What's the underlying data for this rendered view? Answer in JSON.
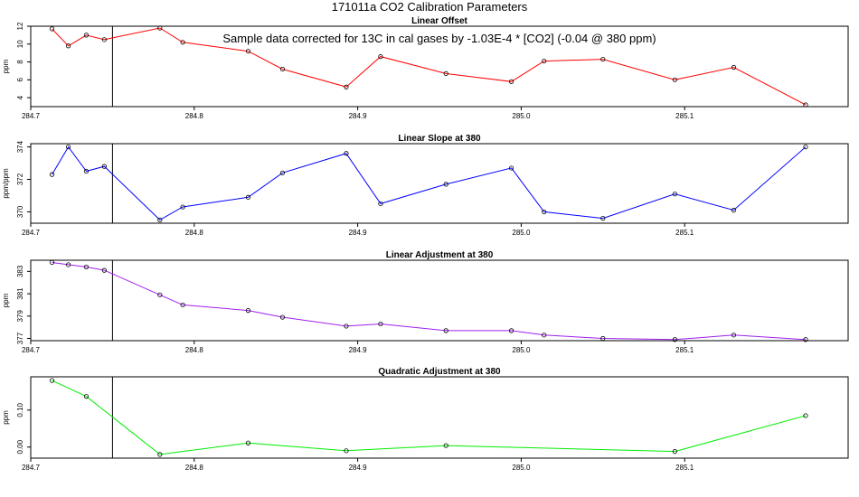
{
  "page": {
    "title": "171011a   CO2 Calibration Parameters",
    "annotation": "Sample data corrected for 13C in cal gases by -1.03E-4 * [CO2] (-0.04 @ 380 ppm)"
  },
  "chart_data": [
    {
      "type": "line",
      "title": "Linear Offset",
      "ylabel": "ppm",
      "color": "#ff0000",
      "xlim": [
        284.7,
        285.2
      ],
      "ylim": [
        3,
        12
      ],
      "xticks": [
        "284.7",
        "284.8",
        "284.9",
        "285.0",
        "285.1"
      ],
      "yticks": [
        "4",
        "6",
        "8",
        "10",
        "12"
      ],
      "marker_x": 284.75,
      "x": [
        284.713,
        284.723,
        284.734,
        284.745,
        284.779,
        284.793,
        284.833,
        284.854,
        284.893,
        284.914,
        284.954,
        284.994,
        285.014,
        285.05,
        285.094,
        285.13,
        285.174
      ],
      "y": [
        11.7,
        9.8,
        11.0,
        10.5,
        11.8,
        10.2,
        9.2,
        7.2,
        5.2,
        8.6,
        6.7,
        5.8,
        8.1,
        8.3,
        6.0,
        7.4,
        3.2
      ]
    },
    {
      "type": "line",
      "title": "Linear Slope at 380",
      "ylabel": "ppm/ppm",
      "color": "#0000ff",
      "xlim": [
        284.7,
        285.2
      ],
      "ylim": [
        369.3,
        374.2
      ],
      "xticks": [
        "284.7",
        "284.8",
        "284.9",
        "285.0",
        "285.1"
      ],
      "yticks": [
        "370",
        "372",
        "374"
      ],
      "marker_x": 284.75,
      "x": [
        284.713,
        284.723,
        284.734,
        284.745,
        284.779,
        284.793,
        284.833,
        284.854,
        284.893,
        284.914,
        284.954,
        284.994,
        285.014,
        285.05,
        285.094,
        285.13,
        285.174
      ],
      "y": [
        372.3,
        374.0,
        372.5,
        372.8,
        369.5,
        370.3,
        370.9,
        372.4,
        373.6,
        370.5,
        371.7,
        372.7,
        370.0,
        369.6,
        371.1,
        370.1,
        374.0
      ]
    },
    {
      "type": "line",
      "title": "Linear Adjustment at 380",
      "ylabel": "ppm",
      "color": "#a020f0",
      "xlim": [
        284.7,
        285.2
      ],
      "ylim": [
        376.8,
        384.0
      ],
      "xticks": [
        "284.7",
        "284.8",
        "284.9",
        "285.0",
        "285.1"
      ],
      "yticks": [
        "377",
        "379",
        "381",
        "383"
      ],
      "marker_x": 284.75,
      "x": [
        284.713,
        284.723,
        284.734,
        284.745,
        284.779,
        284.793,
        284.833,
        284.854,
        284.893,
        284.914,
        284.954,
        284.994,
        285.014,
        285.05,
        285.094,
        285.13,
        285.174
      ],
      "y": [
        383.8,
        383.6,
        383.4,
        383.1,
        380.9,
        380.0,
        379.5,
        378.9,
        378.1,
        378.3,
        377.7,
        377.7,
        377.3,
        377.0,
        376.9,
        377.3,
        376.9
      ]
    },
    {
      "type": "line",
      "title": "Quadratic Adjustment at 380",
      "ylabel": "ppm",
      "color": "#00ee00",
      "xlim": [
        284.7,
        285.2
      ],
      "ylim": [
        -0.03,
        0.19
      ],
      "xticks": [
        "284.7",
        "284.8",
        "284.9",
        "285.0",
        "285.1"
      ],
      "yticks": [
        "0.00",
        "0.10"
      ],
      "marker_x": 284.75,
      "x": [
        284.713,
        284.734,
        284.779,
        284.833,
        284.893,
        284.954,
        285.094,
        285.174
      ],
      "y": [
        0.18,
        0.137,
        -0.02,
        0.011,
        -0.01,
        0.004,
        -0.012,
        0.085
      ]
    }
  ]
}
